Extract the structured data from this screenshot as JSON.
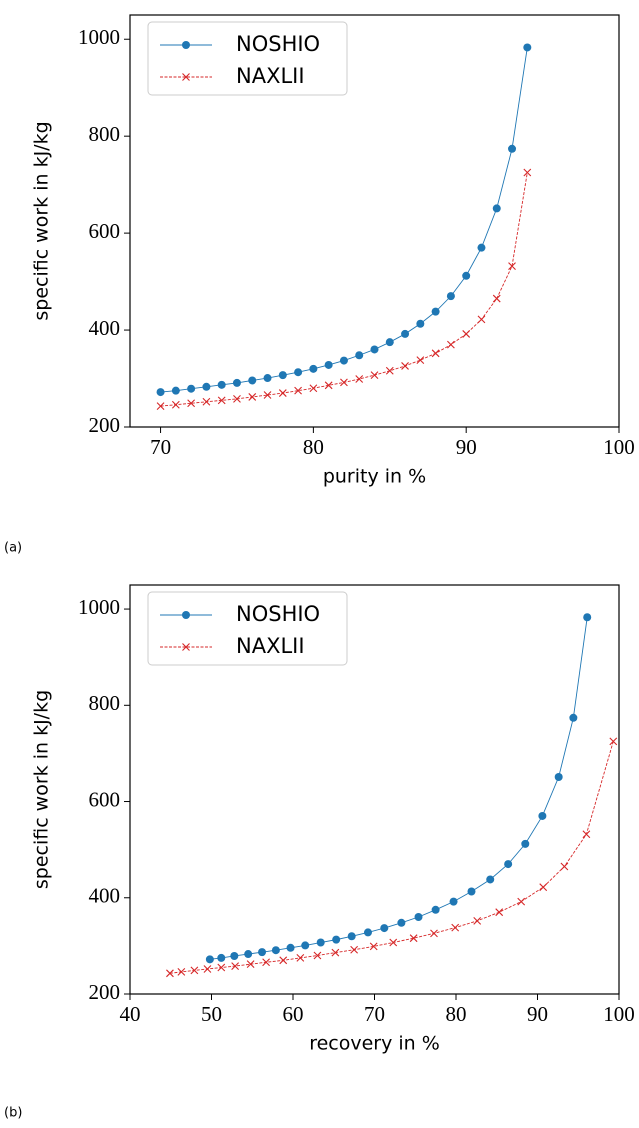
{
  "chart_data": [
    {
      "type": "line",
      "panel_label": "(a)",
      "xlabel": "purity in %",
      "ylabel": "specific work in kJ/kg",
      "xlim": [
        68,
        100
      ],
      "ylim": [
        200,
        1050
      ],
      "xticks": [
        70,
        80,
        90,
        100
      ],
      "yticks": [
        200,
        400,
        600,
        800,
        1000
      ],
      "legend": "upper left",
      "series": [
        {
          "name": "NOSHIO",
          "color": "#1f77b4",
          "marker": "o",
          "x": [
            70,
            71,
            72,
            73,
            74,
            75,
            76,
            77,
            78,
            79,
            80,
            81,
            82,
            83,
            84,
            85,
            86,
            87,
            88,
            89,
            90,
            91,
            92,
            93,
            94
          ],
          "values": [
            272,
            275,
            279,
            283,
            287,
            291,
            296,
            301,
            307,
            313,
            320,
            328,
            337,
            348,
            360,
            375,
            392,
            413,
            438,
            470,
            512,
            570,
            651,
            774,
            983
          ]
        },
        {
          "name": "NAXLII",
          "color": "#d62728",
          "marker": "x",
          "x": [
            70,
            71,
            72,
            73,
            74,
            75,
            76,
            77,
            78,
            79,
            80,
            81,
            82,
            83,
            84,
            85,
            86,
            87,
            88,
            89,
            90,
            91,
            92,
            93,
            94
          ],
          "values": [
            243,
            246,
            249,
            252,
            255,
            258,
            262,
            266,
            270,
            275,
            280,
            286,
            292,
            299,
            307,
            316,
            326,
            338,
            352,
            370,
            392,
            422,
            465,
            532,
            725
          ]
        }
      ]
    },
    {
      "type": "line",
      "panel_label": "(b)",
      "xlabel": "recovery in %",
      "ylabel": "specific work in kJ/kg",
      "xlim": [
        40,
        100
      ],
      "ylim": [
        200,
        1050
      ],
      "xticks": [
        40,
        50,
        60,
        70,
        80,
        90,
        100
      ],
      "yticks": [
        200,
        400,
        600,
        800,
        1000
      ],
      "legend": "upper left",
      "series": [
        {
          "name": "NOSHIO",
          "color": "#1f77b4",
          "marker": "o",
          "x": [
            49.8,
            51.2,
            52.8,
            54.5,
            56.2,
            57.9,
            59.7,
            61.5,
            63.4,
            65.3,
            67.2,
            69.2,
            71.2,
            73.3,
            75.4,
            77.5,
            79.7,
            81.9,
            84.2,
            86.4,
            88.5,
            90.6,
            92.6,
            94.4,
            96.1
          ],
          "values": [
            272,
            275,
            279,
            283,
            287,
            291,
            296,
            301,
            307,
            313,
            320,
            328,
            337,
            348,
            360,
            375,
            392,
            413,
            438,
            470,
            512,
            570,
            651,
            774,
            983
          ]
        },
        {
          "name": "NAXLII",
          "color": "#d62728",
          "marker": "x",
          "x": [
            44.9,
            46.3,
            47.9,
            49.5,
            51.2,
            52.9,
            54.8,
            56.7,
            58.8,
            60.9,
            63.0,
            65.2,
            67.5,
            69.9,
            72.3,
            74.8,
            77.3,
            79.9,
            82.6,
            85.3,
            88.0,
            90.7,
            93.3,
            96.0,
            99.3
          ],
          "values": [
            243,
            246,
            249,
            252,
            255,
            258,
            262,
            266,
            270,
            275,
            280,
            286,
            292,
            299,
            307,
            316,
            326,
            338,
            352,
            370,
            392,
            422,
            465,
            532,
            725
          ]
        }
      ]
    }
  ]
}
